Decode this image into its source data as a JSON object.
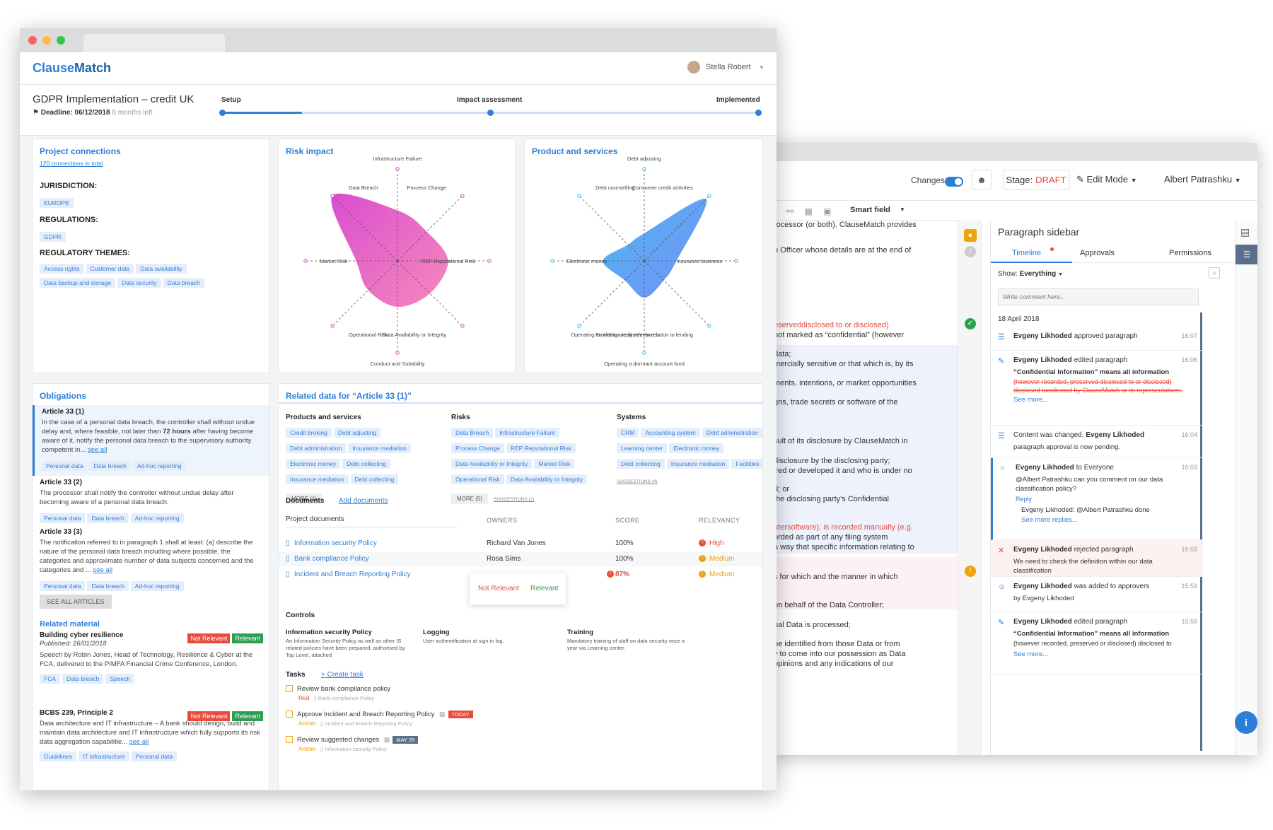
{
  "front": {
    "logo": {
      "text_a": "Clause",
      "text_b": "Match"
    },
    "user": {
      "name": "Stella Robert"
    },
    "project": {
      "title": "GDPR Implementation – credit UK",
      "deadline_label": "Deadline: 06/12/2018",
      "deadline_left": "8 months left",
      "steps": [
        "Setup",
        "Impact assessment",
        "Implemented"
      ],
      "progress": 0.15
    },
    "connections": {
      "title": "Project connections",
      "total_link": "120 connections in total",
      "jurisdiction_label": "JURISDICTION:",
      "jurisdiction_tags": [
        "EUROPE"
      ],
      "regulations_label": "REGULATIONS:",
      "regulations_tags": [
        "GDPR"
      ],
      "themes_label": "REGULATORY THEMES:",
      "themes_tags": [
        "Access rights",
        "Customer data",
        "Data availability",
        "Data backup and storage",
        "Data security",
        "Data breach"
      ]
    },
    "risk_impact": {
      "title": "Risk impact",
      "chart_data": {
        "type": "radar",
        "axes": [
          "Infrastructure Failure",
          "Process Change",
          "REP Reputational Risk",
          "Data Availability or Integrity",
          "Conduct and Suitability",
          "Operational Risk",
          "Market Risk",
          "Data Breach"
        ],
        "values": [
          0.55,
          0.45,
          0.55,
          0.5,
          0.5,
          0.45,
          0.45,
          1.0
        ],
        "range": [
          0,
          1
        ]
      }
    },
    "products": {
      "title": "Product and services",
      "chart_data": {
        "type": "radar",
        "axes": [
          "Debt adjusting",
          "Consumer credit activities",
          "Insurance business",
          "Operating an electronic system in relation to lending",
          "Operating a dormant account fund",
          "Providing credit references",
          "Electronic money",
          "Debt counselling"
        ],
        "values": [
          0.3,
          0.95,
          0.35,
          0.3,
          0.4,
          0.3,
          0.45,
          0.25
        ],
        "range": [
          0,
          1
        ]
      }
    },
    "obligations": {
      "title": "Obligations",
      "items": [
        {
          "title": "Article 33 (1)",
          "text_a": "In the case of a personal data breach, the controller shall without undue delay and, where feasible, not later than",
          "bold": "72 hours",
          "text_b": "after having become aware of it, notify the personal data breach to the supervisory authority competent in...",
          "see": "see all",
          "tags": [
            "Personal data",
            "Data breach",
            "Ad-hoc reporting"
          ]
        },
        {
          "title": "Article 33 (2)",
          "text_a": "The processor shall notify the controller without undue delay after becoming aware of a personal data breach.",
          "bold": "",
          "text_b": "",
          "see": "",
          "tags": [
            "Personal data",
            "Data breach",
            "Ad-hoc reporting"
          ]
        },
        {
          "title": "Article 33 (3)",
          "text_a": "The notification referred to in paragraph 1 shall at least: (a) describe the nature of the personal data breach including where possible, the categories and approximate number of data subjects concerned and the categories and ...",
          "bold": "",
          "text_b": "",
          "see": "see all",
          "tags": [
            "Personal data",
            "Data breach",
            "Ad-hoc reporting"
          ]
        }
      ],
      "see_all_button": "SEE ALL ARTICLES",
      "related_title": "Related material",
      "not_relevant": "Not Relevant",
      "relevant": "Relevant",
      "related": [
        {
          "title": "Building cyber resilience",
          "published": "Published: 26/01/2018",
          "text": "Speech by Robin Jones, Head of Technology, Resilience & Cyber at the FCA, delivered to the PIMFA Financial Crime Conference, London.",
          "see": "",
          "tags": [
            "FCA",
            "Data breach",
            "Speech"
          ]
        },
        {
          "title": "BCBS 239, Principle 2",
          "published": "",
          "text": "Data architecture and IT infrastructure – A bank should design, build and maintain data architecture and IT infrastructure which fully supports its risk data aggregation capabilitie...",
          "see": "see all",
          "tags": [
            "Guidelines",
            "IT infrastructure",
            "Personal data"
          ]
        }
      ]
    },
    "related_data": {
      "title": "Related data for “Article 33 (1)”",
      "groups": [
        {
          "title": "Products and services",
          "tags": [
            "Credit broking",
            "Debt adjusting",
            "Debt administration",
            "Insurance mediation",
            "Electronic money",
            "Debt collecting",
            "Insurance mediation",
            "Debt collecting"
          ],
          "more": "MORE (1)",
          "sugg": ""
        },
        {
          "title": "Risks",
          "tags": [
            "Data Breach",
            "Infrastructure Failure",
            "Process Change",
            "REP Reputational Risk",
            "Data Availability or Integrity",
            "Market Risk",
            "Operational Risk",
            "Data Availability or Integrity"
          ],
          "more": "MORE (5)",
          "sugg": "SUGGESTIONS (2)"
        },
        {
          "title": "Systems",
          "tags": [
            "CRM",
            "Accounting system",
            "Debt administration",
            "Learning center",
            "Electronic money",
            "Debt collecting",
            "Insurance mediation",
            "Facilities"
          ],
          "more": "",
          "sugg": "SUGGESTIONS (4)"
        }
      ],
      "documents_label": "Documents",
      "add_documents": "Add documents",
      "doc_cols": [
        "Project documents",
        "OWNERS",
        "SCORE",
        "RELEVANCY"
      ],
      "docs": [
        {
          "name": "Information security Policy",
          "owner": "Richard Van Jones",
          "score": "100%",
          "relevancy": "High",
          "rel_color": "#e74c3c"
        },
        {
          "name": "Bank compliance Policy",
          "owner": "Rosa Sims",
          "score": "100%",
          "relevancy": "Medium",
          "rel_color": "#f0a30a"
        },
        {
          "name": "Incident and Breach Reporting Policy",
          "owner": "",
          "score": "87%",
          "relevancy": "Medium",
          "rel_color": "#f0a30a"
        }
      ],
      "popup": {
        "not_relevant": "Not Relevant",
        "relevant": "Relevant"
      },
      "controls_label": "Controls",
      "controls": [
        {
          "title": "Information security Policy",
          "text": "An Information Security Policy as well as other IS related policies have been prepared, authorised by Top Level, attached"
        },
        {
          "title": "Logging",
          "text": "User authentification at sign in log."
        },
        {
          "title": "Training",
          "text": "Mandatory training of staff on data security once a year via Learning center."
        }
      ],
      "tasks_label": "Tasks",
      "create_task": "+ Create task",
      "tasks": [
        {
          "title": "Review bank compliance policy",
          "status": "Red",
          "status_color": "#e74c3c",
          "doc": "Bank compliance Policy",
          "badge": "",
          "badge_color": ""
        },
        {
          "title": "Approve Incident and Breach Reporting Policy",
          "status": "Amber",
          "status_color": "#f0a30a",
          "doc": "Incident and Breach Reporting Policy",
          "badge": "TODAY",
          "badge_color": "#e74c3c"
        },
        {
          "title": "Review suggested changes",
          "status": "Amber",
          "status_color": "#f0a30a",
          "doc": "Information security Policy",
          "badge": "MAY 28",
          "badge_color": "#5a6f8a"
        }
      ]
    }
  },
  "back": {
    "changes_label": "Changes",
    "stage_label": "Stage:",
    "stage_value": "DRAFT",
    "edit_mode": "Edit Mode",
    "user": "Albert Patrashku",
    "smart_field": "Smart field",
    "doc_lines": [
      "rocessor (or both). ClauseMatch provides",
      "n Officer whose details are at the end of",
      "eserveddisclosed to or disclosed)",
      "not marked as “confidential” (however",
      "data;",
      "mercially sensitive or that which is, by its",
      "ments, intentions, or market opportunities",
      "gns, trade secrets or software of the",
      ";",
      "sult of its disclosure by ClauseMatch in",
      "disclosure by the disclosing party;",
      "ired or developed it and who is under no",
      "d; or",
      "the disclosing party's Confidential",
      "utersoftware); is recorded manually (e.g.",
      "orded as part of any filing system",
      "a way that specific information relating to",
      "s for which and the manner in which",
      "on behalf of the Data Controller;",
      "nal Data is processed;",
      "be identified from those Data or from",
      "y to come into our possession as Data",
      "opinions and any indications of our"
    ],
    "sidebar": {
      "title": "Paragraph sidebar",
      "tabs": [
        "Timeline",
        "Approvals",
        "Permissions"
      ],
      "show_label": "Show:",
      "show_value": "Everything",
      "comment_placeholder": "Write comment here...",
      "date": "18 April 2018",
      "items": [
        {
          "who": "Evgeny Likhoded",
          "action": "approved paragraph",
          "time": "16:07",
          "body": "",
          "body2": "",
          "more": ""
        },
        {
          "who": "Evgeny Likhoded",
          "action": "edited paragraph",
          "time": "16:06",
          "body": "“Confidential Information” means all information",
          "body2": "(however recorded, preserved disclosed to or disclosed) disclosed tocollected by ClauseMatch or its representatives.",
          "more": "See more..."
        },
        {
          "who": "Evgeny Likhoded",
          "action": "Content was changed.",
          "time": "16:04",
          "body": "paragraph approval is now pending.",
          "body2": "",
          "more": ""
        },
        {
          "who": "Evgeny Likhoded",
          "action": "to Everyone",
          "time": "16:03",
          "body": "@Albert Patrashku can you comment on our data classification policy?",
          "body2": "Reply",
          "more": "Evgeny Likhoded: @Albert Patrashku done",
          "more2": "See more replies..."
        },
        {
          "who": "Evgeny Likhoded",
          "action": "rejected paragraph",
          "time": "16:03",
          "body": "We need to check the definition within our data classification",
          "body2": "",
          "more": ""
        },
        {
          "who": "Evgeny Likhoded",
          "action": "was added to approvers",
          "time": "15:59",
          "body": "by Evgeny Likhoded",
          "body2": "",
          "more": ""
        },
        {
          "who": "Evgeny Likhoded",
          "action": "edited paragraph",
          "time": "15:58",
          "body": "“Confidential Information” means all information",
          "body2": "(however recorded, preserved or disclosed) disclosed to",
          "more": "See more..."
        }
      ]
    }
  }
}
